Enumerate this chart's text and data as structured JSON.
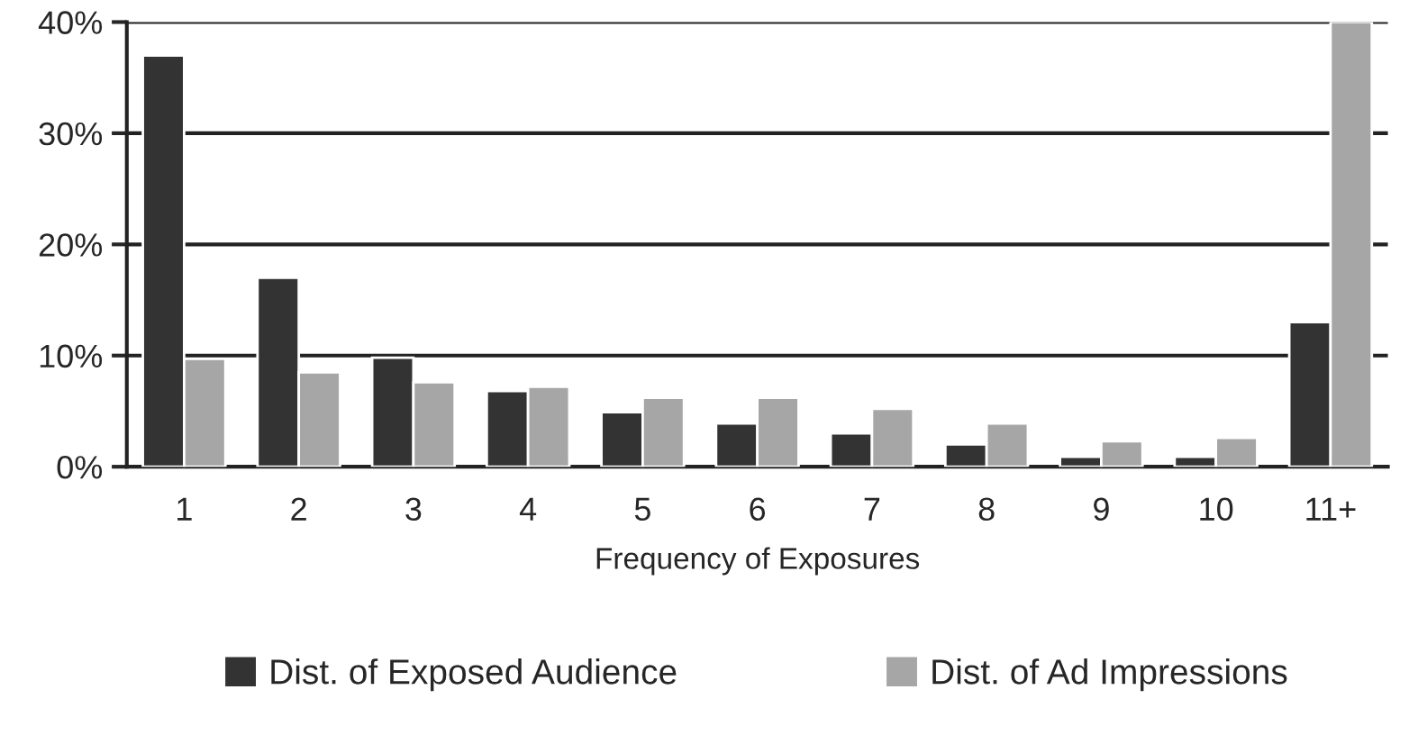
{
  "chart_data": {
    "type": "bar",
    "xlabel": "Frequency of Exposures",
    "categories": [
      "1",
      "2",
      "3",
      "4",
      "5",
      "6",
      "7",
      "8",
      "9",
      "10",
      "11+"
    ],
    "series": [
      {
        "name": "Dist. of Exposed Audience",
        "color": "#333333",
        "values": [
          37,
          17,
          9.8,
          6.8,
          4.9,
          3.9,
          3.0,
          2.0,
          0.9,
          0.9,
          13
        ]
      },
      {
        "name": "Dist. of Ad Impressions",
        "color": "#a6a6a6",
        "values": [
          9.7,
          8.5,
          7.6,
          7.2,
          6.2,
          6.2,
          5.2,
          3.9,
          2.3,
          2.6,
          40
        ]
      }
    ],
    "ylim": [
      0,
      40
    ],
    "yticks": [
      {
        "value": 0,
        "label": "0%"
      },
      {
        "value": 10,
        "label": "10%"
      },
      {
        "value": 20,
        "label": "20%"
      },
      {
        "value": 30,
        "label": "30%"
      },
      {
        "value": 40,
        "label": "40%"
      }
    ],
    "grid": "y",
    "legend": "bottom"
  }
}
